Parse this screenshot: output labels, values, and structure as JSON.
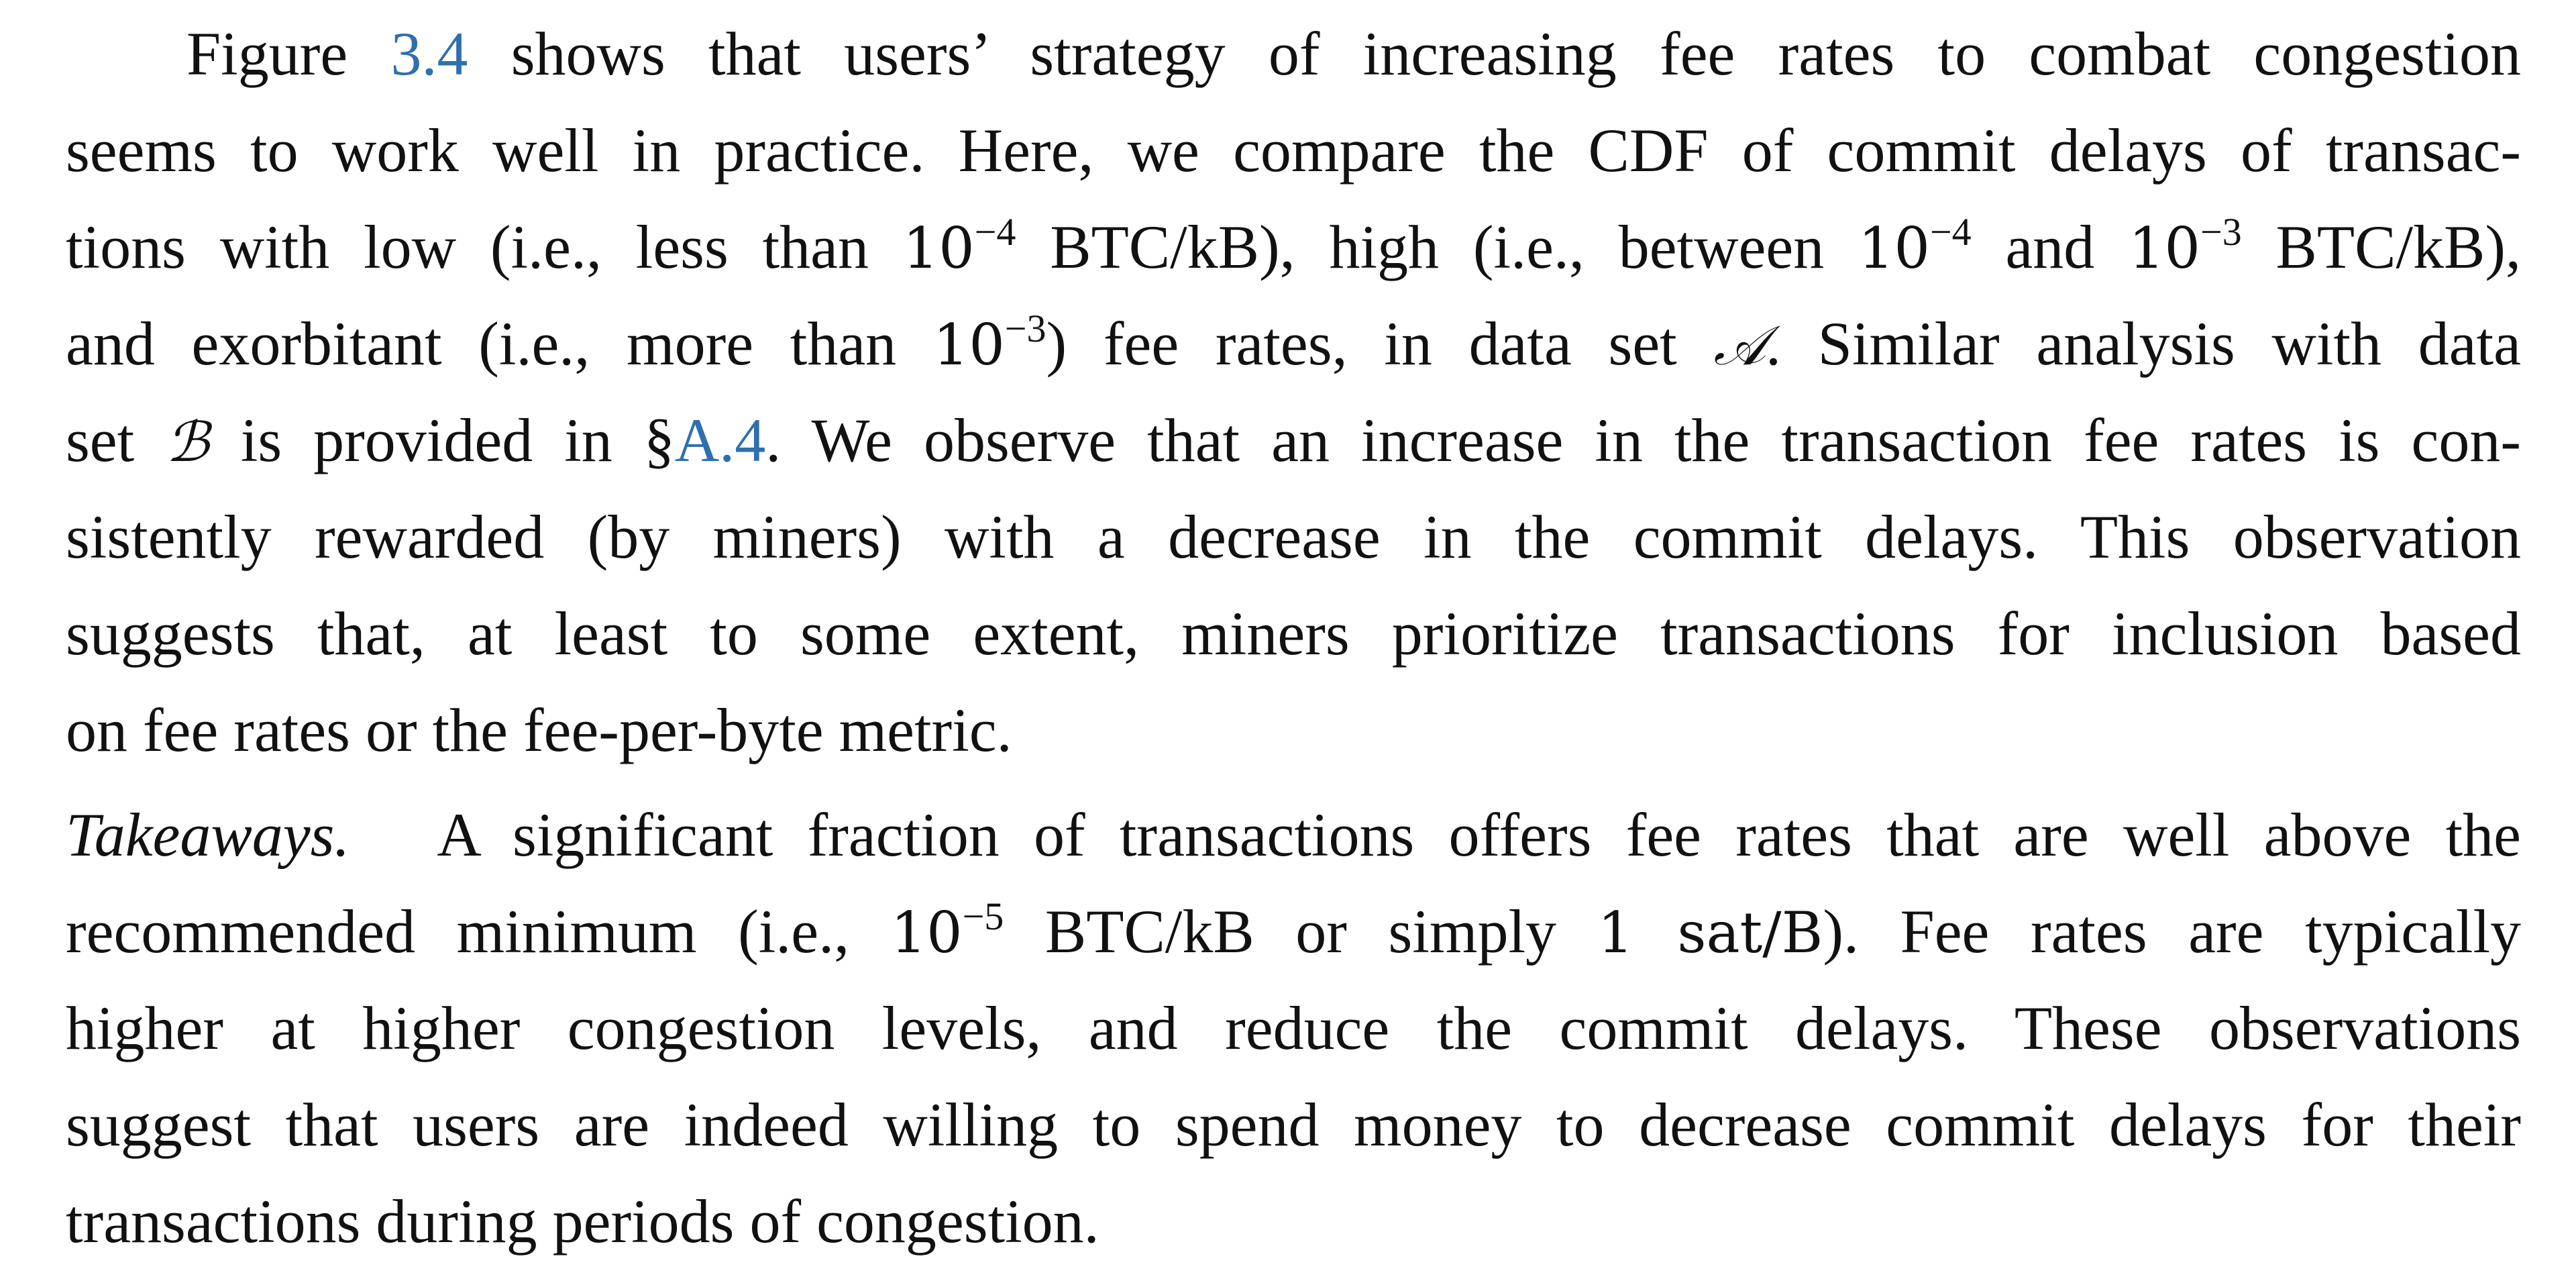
{
  "paragraphs": [
    {
      "lines": [
        [
          "Figure ",
          "3.4",
          " shows that users’ strategy of increasing fee rates to combat congestion"
        ],
        [
          "seems to work well in practice. Here, we compare the CDF of commit delays of transac-"
        ],
        [
          "tions with low (i.e., less than ",
          "10",
          "−4",
          " BTC/kB), high (i.e., between ",
          "10",
          "−4",
          " and ",
          "10",
          "−3",
          " BTC/kB),"
        ],
        [
          "and exorbitant (i.e., more than ",
          "10",
          "−3",
          ") fee rates, in data set ",
          "𝒜",
          ". Similar analysis with data"
        ],
        [
          "set ",
          "ℬ",
          " is provided in §",
          "A.4",
          ". We observe that an increase in the transaction fee rates is con-"
        ],
        [
          "sistently rewarded (by miners) with a decrease in the commit delays. This observation"
        ],
        [
          "suggests that, at least to some extent, miners prioritize transactions for inclusion based"
        ],
        [
          "on fee rates or the fee-per-byte metric."
        ]
      ]
    },
    {
      "heading": "Takeaways.",
      "lines": [
        [
          "A significant fraction of transactions offers fee rates that are well above the"
        ],
        [
          "recommended minimum (i.e., ",
          "10",
          "−5",
          " BTC/kB or simply ",
          "1 sat/B",
          "). Fee rates are typically"
        ],
        [
          "higher at higher congestion levels, and reduce the commit delays. These observations"
        ],
        [
          "suggest that users are indeed willing to spend money to decrease commit delays for their"
        ],
        [
          "transactions during periods of congestion."
        ]
      ]
    }
  ]
}
